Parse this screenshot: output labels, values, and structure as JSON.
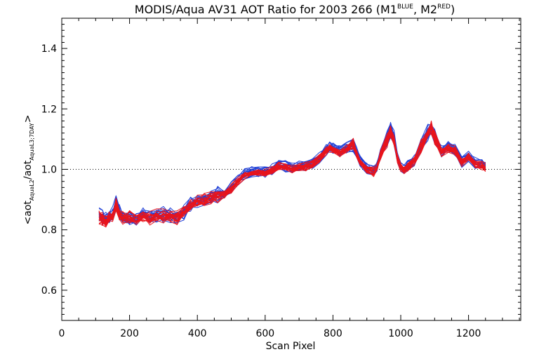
{
  "chart_data": {
    "type": "line",
    "title": {
      "main": "MODIS/Aqua AV31 AOT Ratio for 2003 266 (M1",
      "sup1": "BLUE",
      "mid": ", M2",
      "sup2": "RED",
      "end": ")"
    },
    "xlabel": "Scan Pixel",
    "ylabel": {
      "pre": "<aot",
      "sub1": "AquaL2",
      "mid": "/aot",
      "sub2": "AquaL3;7DAY",
      "post": ">"
    },
    "xlim": [
      0,
      1354
    ],
    "ylim": [
      0.5,
      1.5
    ],
    "xticks": [
      0,
      200,
      400,
      600,
      800,
      1000,
      1200
    ],
    "xticklabels": [
      "0",
      "200",
      "400",
      "600",
      "800",
      "1000",
      "1200"
    ],
    "yticks": [
      0.6,
      0.8,
      1.0,
      1.2,
      1.4
    ],
    "yticklabels": [
      "0.6",
      "0.8",
      "1.0",
      "1.2",
      "1.4"
    ],
    "reference_line": {
      "y": 1.0,
      "style": "dotted"
    },
    "grid": false,
    "colors": {
      "M1": "#1f3fd6",
      "M2": "#e8141c"
    },
    "series": [
      {
        "group": "M1",
        "x": [
          110,
          120,
          130,
          140,
          150,
          160,
          170,
          180,
          200,
          220,
          240,
          260,
          280,
          300,
          320,
          340,
          360,
          380,
          400,
          420,
          440,
          460,
          480,
          500,
          520,
          540,
          560,
          580,
          600,
          620,
          640,
          660,
          680,
          700,
          720,
          740,
          760,
          780,
          790,
          800,
          820,
          840,
          860,
          870,
          880,
          900,
          920,
          930,
          940,
          960,
          970,
          980,
          990,
          1000,
          1010,
          1020,
          1040,
          1060,
          1080,
          1090,
          1100,
          1120,
          1140,
          1160,
          1180,
          1200,
          1220,
          1240,
          1250
        ],
        "values": [
          0.845,
          0.84,
          0.83,
          0.845,
          0.85,
          0.89,
          0.855,
          0.845,
          0.845,
          0.838,
          0.845,
          0.84,
          0.848,
          0.85,
          0.845,
          0.842,
          0.86,
          0.885,
          0.898,
          0.902,
          0.908,
          0.915,
          0.922,
          0.94,
          0.965,
          0.985,
          0.99,
          0.992,
          0.99,
          1.0,
          1.015,
          1.01,
          1.005,
          1.01,
          1.012,
          1.02,
          1.04,
          1.065,
          1.075,
          1.07,
          1.06,
          1.07,
          1.085,
          1.055,
          1.03,
          1.005,
          0.995,
          1.01,
          1.05,
          1.1,
          1.13,
          1.1,
          1.04,
          1.01,
          1.0,
          1.01,
          1.03,
          1.08,
          1.12,
          1.14,
          1.11,
          1.06,
          1.075,
          1.065,
          1.025,
          1.045,
          1.02,
          1.015,
          1.01
        ]
      }
    ]
  }
}
